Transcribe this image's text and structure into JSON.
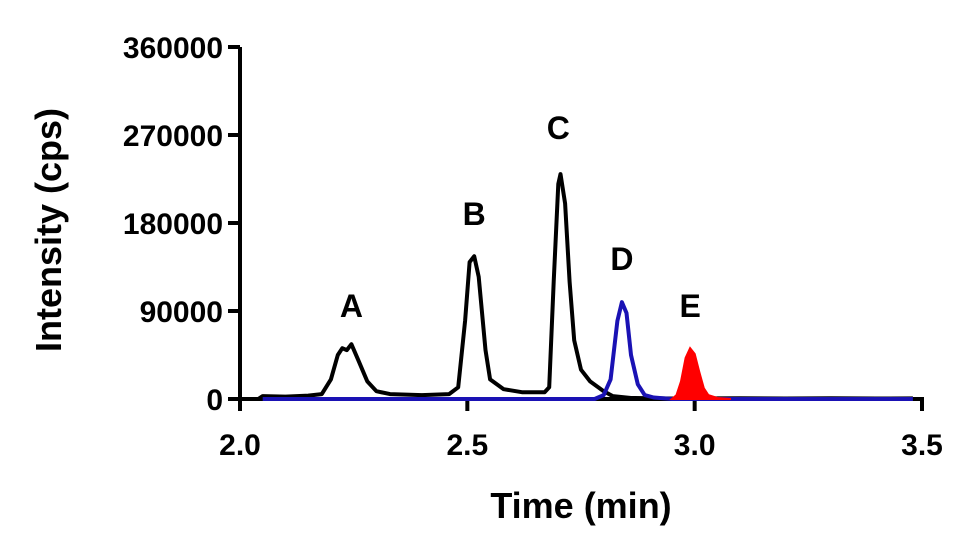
{
  "chart_data": {
    "type": "line",
    "title": "",
    "xlabel": "Time (min)",
    "ylabel": "Intensity (cps)",
    "xlim": [
      2.0,
      3.5
    ],
    "ylim": [
      0,
      360000
    ],
    "xticks": [
      2.0,
      2.5,
      3.0,
      3.5
    ],
    "xtick_labels": [
      "2.0",
      "2.5",
      "3.0",
      "3.5"
    ],
    "yticks": [
      0,
      90000,
      180000,
      270000,
      360000
    ],
    "ytick_labels": [
      "0",
      "90000",
      "180000",
      "270000",
      "360000"
    ],
    "grid": false,
    "series": [
      {
        "name": "black trace",
        "color": "#000000",
        "fill": false,
        "points": [
          [
            2.04,
            0
          ],
          [
            2.05,
            3000
          ],
          [
            2.1,
            2500
          ],
          [
            2.15,
            3500
          ],
          [
            2.18,
            5000
          ],
          [
            2.2,
            20000
          ],
          [
            2.215,
            45000
          ],
          [
            2.225,
            52000
          ],
          [
            2.235,
            50000
          ],
          [
            2.245,
            56000
          ],
          [
            2.26,
            40000
          ],
          [
            2.28,
            18000
          ],
          [
            2.3,
            8000
          ],
          [
            2.33,
            5000
          ],
          [
            2.4,
            4000
          ],
          [
            2.46,
            5000
          ],
          [
            2.48,
            12000
          ],
          [
            2.495,
            80000
          ],
          [
            2.505,
            140000
          ],
          [
            2.515,
            146000
          ],
          [
            2.525,
            125000
          ],
          [
            2.54,
            50000
          ],
          [
            2.55,
            20000
          ],
          [
            2.58,
            10000
          ],
          [
            2.62,
            7000
          ],
          [
            2.67,
            7000
          ],
          [
            2.68,
            12000
          ],
          [
            2.69,
            120000
          ],
          [
            2.7,
            220000
          ],
          [
            2.705,
            230000
          ],
          [
            2.715,
            200000
          ],
          [
            2.725,
            120000
          ],
          [
            2.735,
            60000
          ],
          [
            2.75,
            30000
          ],
          [
            2.77,
            18000
          ],
          [
            2.8,
            8000
          ],
          [
            2.82,
            3000
          ],
          [
            2.86,
            1000
          ],
          [
            2.95,
            500
          ],
          [
            3.1,
            800
          ],
          [
            3.2,
            500
          ],
          [
            3.3,
            800
          ],
          [
            3.4,
            500
          ],
          [
            3.48,
            600
          ]
        ]
      },
      {
        "name": "blue trace",
        "color": "#1a12b4",
        "fill": false,
        "points": [
          [
            2.05,
            0
          ],
          [
            2.78,
            0
          ],
          [
            2.8,
            4000
          ],
          [
            2.815,
            20000
          ],
          [
            2.83,
            80000
          ],
          [
            2.84,
            99000
          ],
          [
            2.85,
            88000
          ],
          [
            2.86,
            45000
          ],
          [
            2.875,
            15000
          ],
          [
            2.89,
            4000
          ],
          [
            2.91,
            1500
          ],
          [
            2.95,
            0
          ],
          [
            3.48,
            0
          ]
        ]
      },
      {
        "name": "red trace",
        "color": "#ff0000",
        "fill": true,
        "points": [
          [
            2.95,
            0
          ],
          [
            2.96,
            4000
          ],
          [
            2.97,
            18000
          ],
          [
            2.98,
            42000
          ],
          [
            2.99,
            52000
          ],
          [
            3.0,
            46000
          ],
          [
            3.01,
            28000
          ],
          [
            3.02,
            11000
          ],
          [
            3.03,
            4000
          ],
          [
            3.05,
            1000
          ],
          [
            3.08,
            0
          ]
        ]
      }
    ],
    "annotations": [
      {
        "text": "A",
        "x": 2.245,
        "y": 84000
      },
      {
        "text": "B",
        "x": 2.515,
        "y": 178000
      },
      {
        "text": "C",
        "x": 2.7,
        "y": 266000
      },
      {
        "text": "D",
        "x": 2.84,
        "y": 132000
      },
      {
        "text": "E",
        "x": 2.99,
        "y": 84000
      }
    ]
  }
}
